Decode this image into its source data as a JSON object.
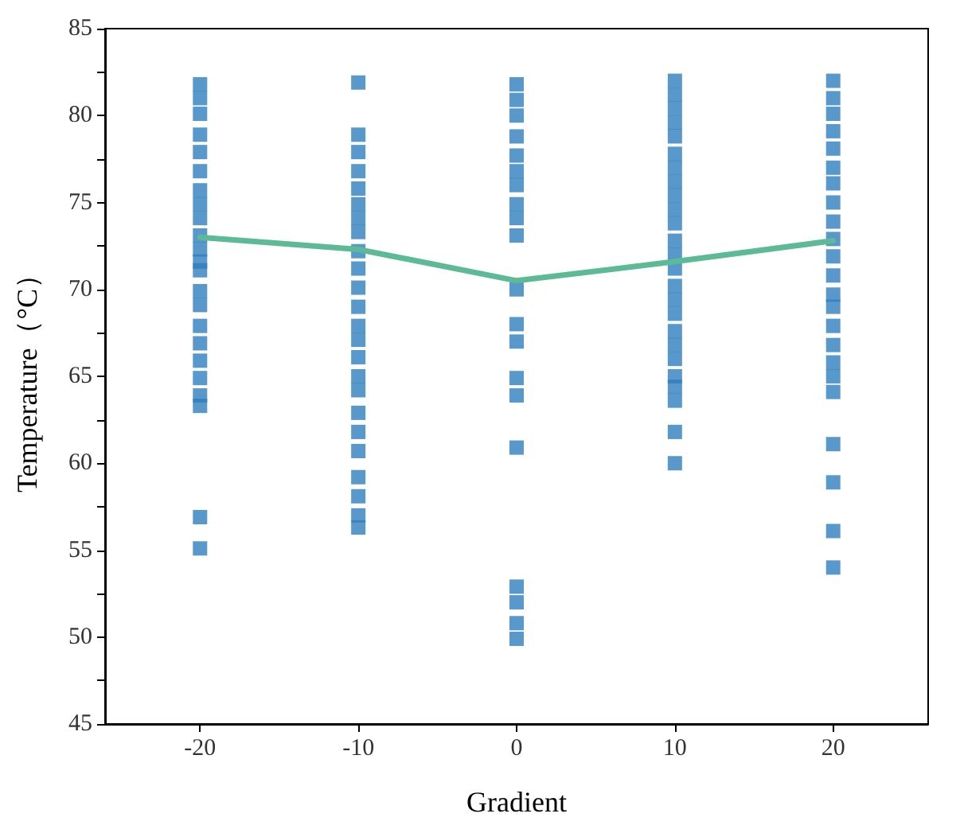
{
  "chart_data": {
    "type": "scatter",
    "xlabel": "Gradient",
    "ylabel": "Temperature（°C）",
    "xlim": [
      -26,
      26
    ],
    "xticks": [
      -20,
      -10,
      0,
      10,
      20
    ],
    "ylim": [
      45,
      85
    ],
    "yticks": [
      45,
      {
        "value": 47.5,
        "label": null
      },
      50,
      {
        "value": 52.5,
        "label": null
      },
      55,
      {
        "value": 57.5,
        "label": null
      },
      60,
      {
        "value": 62.5,
        "label": null
      },
      65,
      {
        "value": 67.5,
        "label": null
      },
      70,
      {
        "value": 72.5,
        "label": null
      },
      75,
      {
        "value": 77.5,
        "label": null
      },
      80,
      {
        "value": 82.5,
        "label": null
      },
      85
    ],
    "grid": false,
    "series": [
      {
        "marker": "square",
        "color": "#2e7ebd",
        "x": [
          -20,
          -20,
          -20,
          -20,
          -20,
          -20,
          -20,
          -20,
          -20,
          -20,
          -20,
          -20,
          -20,
          -20,
          -20,
          -20,
          -20,
          -20,
          -20,
          -20,
          -20,
          -20,
          -20,
          -10,
          -10,
          -10,
          -10,
          -10,
          -10,
          -10,
          -10,
          -10,
          -10,
          -10,
          -10,
          -10,
          -10,
          -10,
          -10,
          -10,
          -10,
          -10,
          -10,
          -10,
          -10,
          -10,
          -10,
          0,
          0,
          0,
          0,
          0,
          0,
          0,
          0,
          0,
          0,
          0,
          0,
          0,
          0,
          0,
          0,
          0,
          0,
          0,
          0,
          10,
          10,
          10,
          10,
          10,
          10,
          10,
          10,
          10,
          10,
          10,
          10,
          10,
          10,
          10,
          10,
          10,
          10,
          10,
          10,
          10,
          10,
          10,
          10,
          10,
          20,
          20,
          20,
          20,
          20,
          20,
          20,
          20,
          20,
          20,
          20,
          20,
          20,
          20,
          20,
          20,
          20,
          20,
          20,
          20,
          20,
          20,
          20
        ],
        "values": [
          81.8,
          81.0,
          80.1,
          78.9,
          77.9,
          76.8,
          75.7,
          74.9,
          74.1,
          73.1,
          72.3,
          71.6,
          71.1,
          69.9,
          69.1,
          67.9,
          66.9,
          65.9,
          64.9,
          63.9,
          63.3,
          56.9,
          55.1,
          81.9,
          78.9,
          77.9,
          76.8,
          75.8,
          74.9,
          74.1,
          73.3,
          72.2,
          71.2,
          70.1,
          69.0,
          67.9,
          67.1,
          66.1,
          65.0,
          64.2,
          62.9,
          61.8,
          60.7,
          59.2,
          58.1,
          57.0,
          56.3,
          81.8,
          80.9,
          80.0,
          78.8,
          77.7,
          76.8,
          76.0,
          74.9,
          74.1,
          73.1,
          70.0,
          68.0,
          67.0,
          64.9,
          63.9,
          60.9,
          52.9,
          52.0,
          50.8,
          49.9,
          82.0,
          81.2,
          80.4,
          79.6,
          78.8,
          77.8,
          77.0,
          76.2,
          75.4,
          74.6,
          73.8,
          72.8,
          72.0,
          71.2,
          70.2,
          69.4,
          68.6,
          67.6,
          66.8,
          66.0,
          65.0,
          64.4,
          63.6,
          61.8,
          60.0,
          82.0,
          81.0,
          80.1,
          79.1,
          78.1,
          77.0,
          76.1,
          75.0,
          73.9,
          72.9,
          71.9,
          70.8,
          69.7,
          69.0,
          67.9,
          66.8,
          65.8,
          65.0,
          64.1,
          61.1,
          58.9,
          56.1,
          54.0
        ]
      },
      {
        "type": "line",
        "marker": "none",
        "line_style": "solid",
        "color": "#5cbb96",
        "x": [
          -20,
          -10,
          0,
          10,
          20
        ],
        "values": [
          73.0,
          72.3,
          70.5,
          71.6,
          72.8
        ]
      }
    ]
  }
}
